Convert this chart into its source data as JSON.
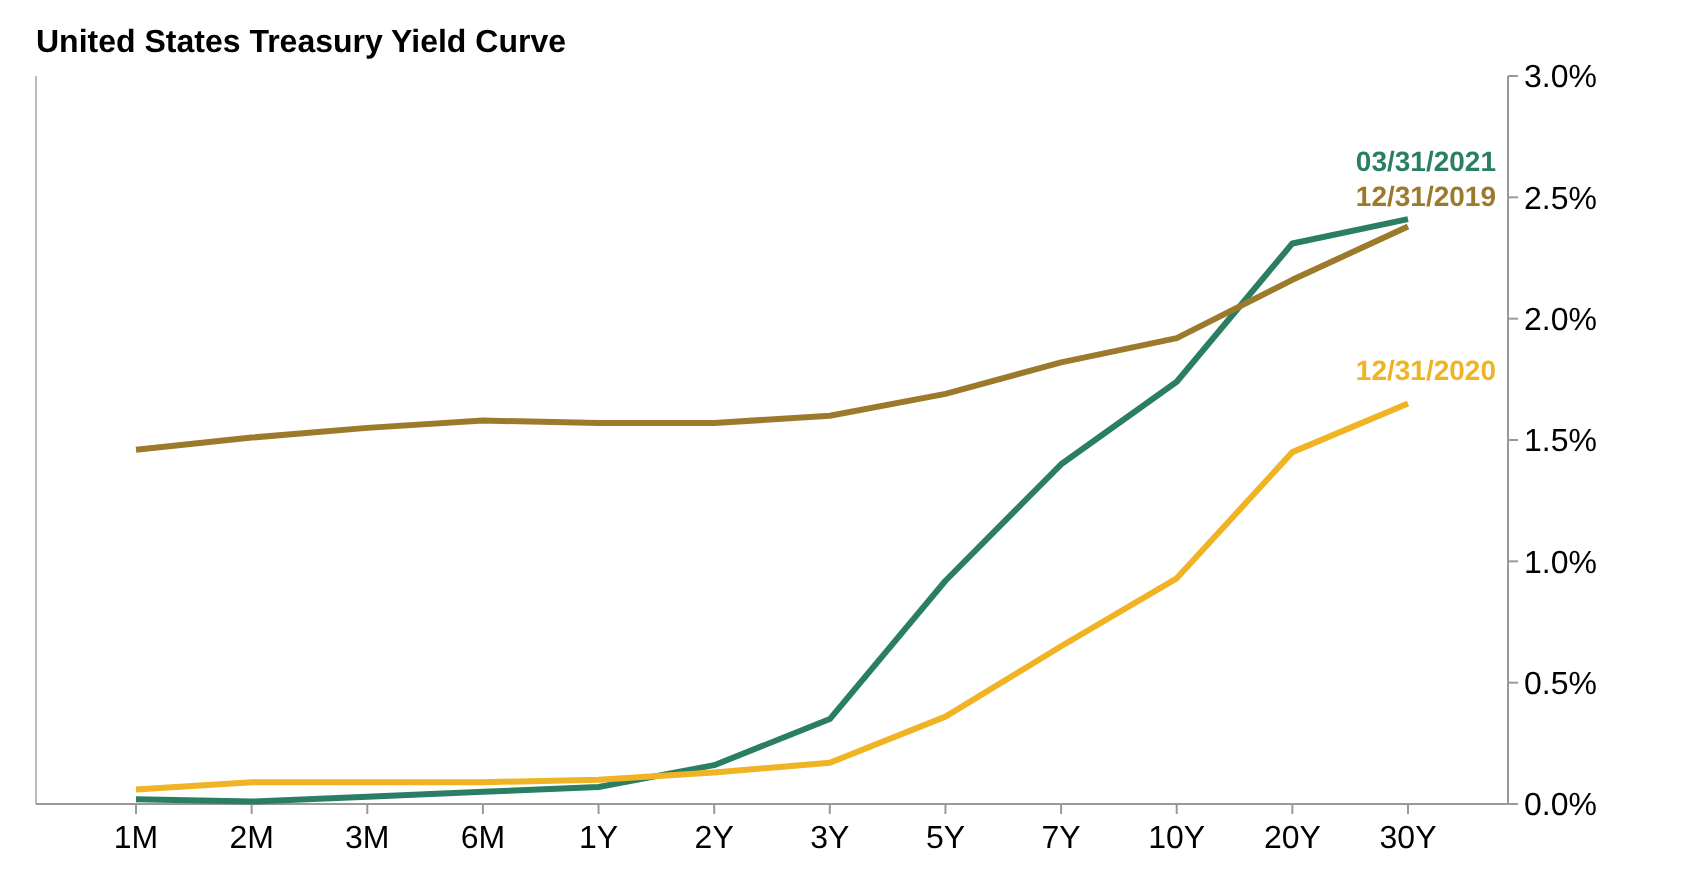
{
  "chart_data": {
    "type": "line",
    "title": "United States Treasury Yield Curve",
    "categories": [
      "1M",
      "2M",
      "3M",
      "6M",
      "1Y",
      "2Y",
      "3Y",
      "5Y",
      "7Y",
      "10Y",
      "20Y",
      "30Y"
    ],
    "series": [
      {
        "name": "03/31/2021",
        "color": "#2a7f62",
        "values": [
          0.02,
          0.01,
          0.03,
          0.05,
          0.07,
          0.16,
          0.35,
          0.92,
          1.4,
          1.74,
          2.31,
          2.41
        ]
      },
      {
        "name": "12/31/2019",
        "color": "#9c7a2c",
        "values": [
          1.46,
          1.51,
          1.55,
          1.58,
          1.57,
          1.57,
          1.6,
          1.69,
          1.82,
          1.92,
          2.16,
          2.38
        ]
      },
      {
        "name": "12/31/2020",
        "color": "#f0b323",
        "values": [
          0.06,
          0.09,
          0.09,
          0.09,
          0.1,
          0.13,
          0.17,
          0.36,
          0.65,
          0.93,
          1.45,
          1.65
        ]
      }
    ],
    "ylim": [
      0,
      3
    ],
    "yticks": [
      {
        "value": 0,
        "label": "0.0%"
      },
      {
        "value": 0.5,
        "label": "0.5%"
      },
      {
        "value": 1,
        "label": "1.0%"
      },
      {
        "value": 1.5,
        "label": "1.5%"
      },
      {
        "value": 2,
        "label": "2.0%"
      },
      {
        "value": 2.5,
        "label": "2.5%"
      },
      {
        "value": 3,
        "label": "3.0%"
      }
    ],
    "grid": false,
    "legend": false,
    "marker": "none",
    "line_style": "solid"
  }
}
